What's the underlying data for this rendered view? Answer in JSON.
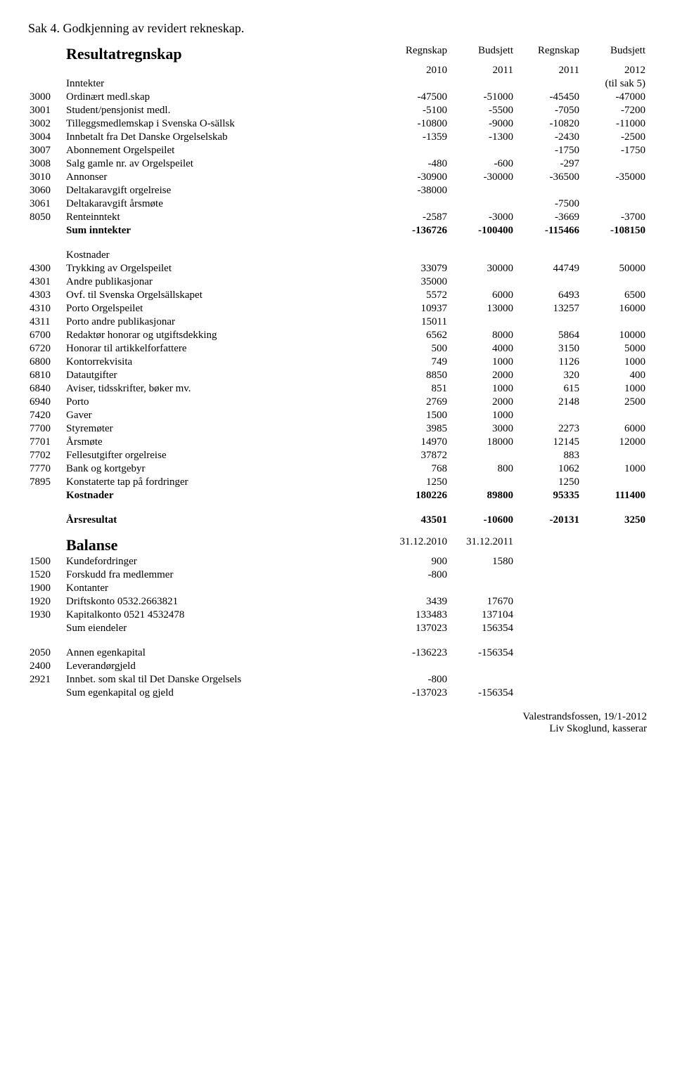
{
  "title": "Sak 4. Godkjenning av revidert rekneskap.",
  "resultat": {
    "heading": "Resultatregnskap",
    "col_headers": [
      "Regnskap",
      "Budsjett",
      "Regnskap",
      "Budsjett"
    ],
    "year_headers": [
      "2010",
      "2011",
      "2011",
      "2012"
    ],
    "inntekter_label": "Inntekter",
    "inntekter_note": "(til sak 5)",
    "rows": [
      {
        "code": "3000",
        "label": "Ordinært medl.skap",
        "v": [
          "-47500",
          "-51000",
          "-45450",
          "-47000"
        ]
      },
      {
        "code": "3001",
        "label": "Student/pensjonist medl.",
        "v": [
          "-5100",
          "-5500",
          "-7050",
          "-7200"
        ]
      },
      {
        "code": "3002",
        "label": "Tilleggsmedlemskap i Svenska O-sällsk",
        "v": [
          "-10800",
          "-9000",
          "-10820",
          "-11000"
        ]
      },
      {
        "code": "3004",
        "label": "Innbetalt fra Det Danske Orgelselskab",
        "v": [
          "-1359",
          "-1300",
          "-2430",
          "-2500"
        ]
      },
      {
        "code": "3007",
        "label": "Abonnement Orgelspeilet",
        "v": [
          "",
          "",
          "-1750",
          "-1750"
        ]
      },
      {
        "code": "3008",
        "label": "Salg gamle nr. av Orgelspeilet",
        "v": [
          "-480",
          "-600",
          "-297",
          ""
        ]
      },
      {
        "code": "3010",
        "label": "Annonser",
        "v": [
          "-30900",
          "-30000",
          "-36500",
          "-35000"
        ]
      },
      {
        "code": "3060",
        "label": "Deltakaravgift orgelreise",
        "v": [
          "-38000",
          "",
          "",
          ""
        ]
      },
      {
        "code": "3061",
        "label": "Deltakaravgift årsmøte",
        "v": [
          "",
          "",
          "-7500",
          ""
        ]
      },
      {
        "code": "8050",
        "label": "Renteinntekt",
        "v": [
          "-2587",
          "-3000",
          "-3669",
          "-3700"
        ]
      }
    ],
    "sum_inntekter": {
      "label": "Sum inntekter",
      "v": [
        "-136726",
        "-100400",
        "-115466",
        "-108150"
      ]
    },
    "kostnader_label": "Kostnader",
    "kostnader_rows": [
      {
        "code": "4300",
        "label": "Trykking av Orgelspeilet",
        "v": [
          "33079",
          "30000",
          "44749",
          "50000"
        ]
      },
      {
        "code": "4301",
        "label": "Andre publikasjonar",
        "v": [
          "35000",
          "",
          "",
          ""
        ]
      },
      {
        "code": "4303",
        "label": "Ovf. til Svenska Orgelsällskapet",
        "v": [
          "5572",
          "6000",
          "6493",
          "6500"
        ]
      },
      {
        "code": "4310",
        "label": "Porto Orgelspeilet",
        "v": [
          "10937",
          "13000",
          "13257",
          "16000"
        ]
      },
      {
        "code": "4311",
        "label": "Porto andre publikasjonar",
        "v": [
          "15011",
          "",
          "",
          ""
        ]
      },
      {
        "code": "6700",
        "label": "Redaktør honorar og utgiftsdekking",
        "v": [
          "6562",
          "8000",
          "5864",
          "10000"
        ]
      },
      {
        "code": "6720",
        "label": "Honorar til artikkelforfattere",
        "v": [
          "500",
          "4000",
          "3150",
          "5000"
        ]
      },
      {
        "code": "6800",
        "label": "Kontorrekvisita",
        "v": [
          "749",
          "1000",
          "1126",
          "1000"
        ]
      },
      {
        "code": "6810",
        "label": "Datautgifter",
        "v": [
          "8850",
          "2000",
          "320",
          "400"
        ]
      },
      {
        "code": "6840",
        "label": "Aviser, tidsskrifter, bøker mv.",
        "v": [
          "851",
          "1000",
          "615",
          "1000"
        ]
      },
      {
        "code": "6940",
        "label": "Porto",
        "v": [
          "2769",
          "2000",
          "2148",
          "2500"
        ]
      },
      {
        "code": "7420",
        "label": "Gaver",
        "v": [
          "1500",
          "1000",
          "",
          ""
        ]
      },
      {
        "code": "7700",
        "label": "Styremøter",
        "v": [
          "3985",
          "3000",
          "2273",
          "6000"
        ]
      },
      {
        "code": "7701",
        "label": "Årsmøte",
        "v": [
          "14970",
          "18000",
          "12145",
          "12000"
        ]
      },
      {
        "code": "7702",
        "label": "Fellesutgifter orgelreise",
        "v": [
          "37872",
          "",
          "883",
          ""
        ]
      },
      {
        "code": "7770",
        "label": "Bank og kortgebyr",
        "v": [
          "768",
          "800",
          "1062",
          "1000"
        ]
      },
      {
        "code": "7895",
        "label": "Konstaterte tap på fordringer",
        "v": [
          "1250",
          "",
          "1250",
          ""
        ]
      }
    ],
    "sum_kostnader": {
      "label": "Kostnader",
      "v": [
        "180226",
        "89800",
        "95335",
        "111400"
      ]
    },
    "aarsresultat": {
      "label": "Årsresultat",
      "v": [
        "43501",
        "-10600",
        "-20131",
        "3250"
      ]
    }
  },
  "balanse": {
    "heading": "Balanse",
    "col_headers": [
      "31.12.2010",
      "31.12.2011"
    ],
    "rows": [
      {
        "code": "1500",
        "label": "Kundefordringer",
        "v": [
          "900",
          "1580"
        ]
      },
      {
        "code": "1520",
        "label": "Forskudd fra medlemmer",
        "v": [
          "-800",
          ""
        ]
      },
      {
        "code": "1900",
        "label": "Kontanter",
        "v": [
          "",
          ""
        ]
      },
      {
        "code": "1920",
        "label": "Driftskonto 0532.2663821",
        "v": [
          "3439",
          "17670"
        ]
      },
      {
        "code": "1930",
        "label": "Kapitalkonto 0521 4532478",
        "v": [
          "133483",
          "137104"
        ]
      }
    ],
    "sum_eiendeler": {
      "label": "Sum eiendeler",
      "v": [
        "137023",
        "156354"
      ]
    },
    "rows2": [
      {
        "code": "2050",
        "label": "Annen egenkapital",
        "v": [
          "-136223",
          "-156354"
        ]
      },
      {
        "code": "2400",
        "label": "Leverandørgjeld",
        "v": [
          "",
          ""
        ]
      },
      {
        "code": "2921",
        "label": "Innbet. som skal til Det Danske Orgelsels",
        "v": [
          "-800",
          ""
        ]
      }
    ],
    "sum_ek": {
      "label": "Sum egenkapital og gjeld",
      "v": [
        "-137023",
        "-156354"
      ]
    }
  },
  "footer": {
    "place_date": "Valestrandsfossen, 19/1-2012",
    "signer": "Liv Skoglund, kasserar"
  }
}
